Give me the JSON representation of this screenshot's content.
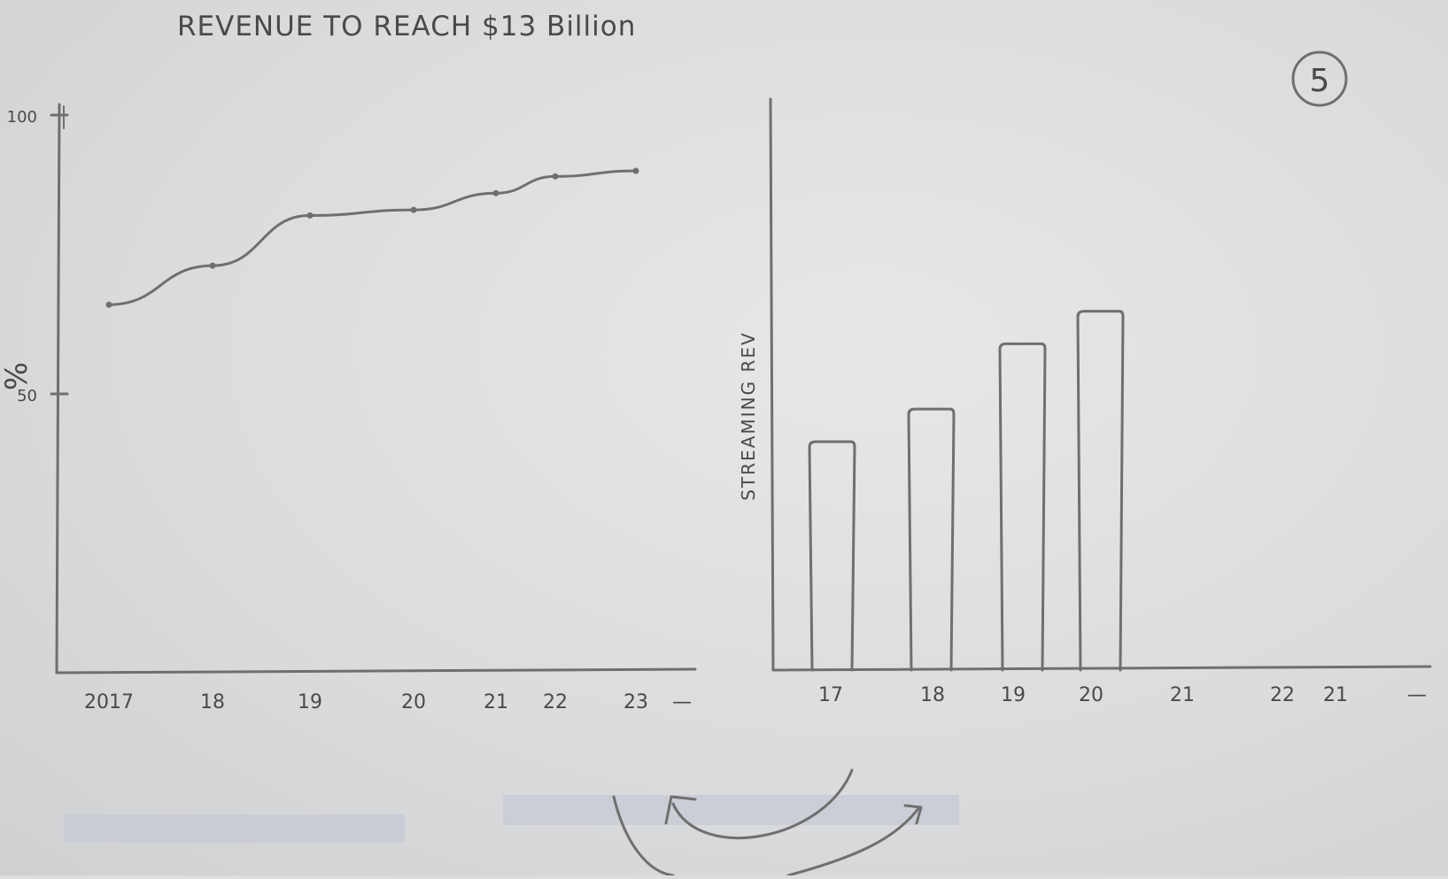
{
  "page_number": "5",
  "chart_data": [
    {
      "type": "line",
      "title": "REVENUE TO REACH $13 Billion",
      "xlabel": "",
      "ylabel": "%",
      "x_tick_labels": [
        "2017",
        "18",
        "19",
        "20",
        "21",
        "22",
        "23",
        "—"
      ],
      "y_tick_labels": [
        "50",
        "100"
      ],
      "ylim": [
        0,
        100
      ],
      "series": [
        {
          "x": [
            "2017",
            "18",
            "19",
            "20",
            "21",
            "22",
            "23"
          ],
          "y": [
            66,
            73,
            82,
            83,
            86,
            89,
            90
          ]
        }
      ],
      "grid": false,
      "legend": "none"
    },
    {
      "type": "bar",
      "title": "",
      "xlabel": "",
      "ylabel": "STREAMING REV",
      "x_tick_labels": [
        "17",
        "18",
        "19",
        "20",
        "21",
        "22",
        "21",
        "—"
      ],
      "categories": [
        "17",
        "18",
        "19",
        "20"
      ],
      "values": [
        42,
        48,
        60,
        66
      ],
      "ylim": [
        0,
        105
      ],
      "grid": false,
      "legend": "none"
    }
  ]
}
